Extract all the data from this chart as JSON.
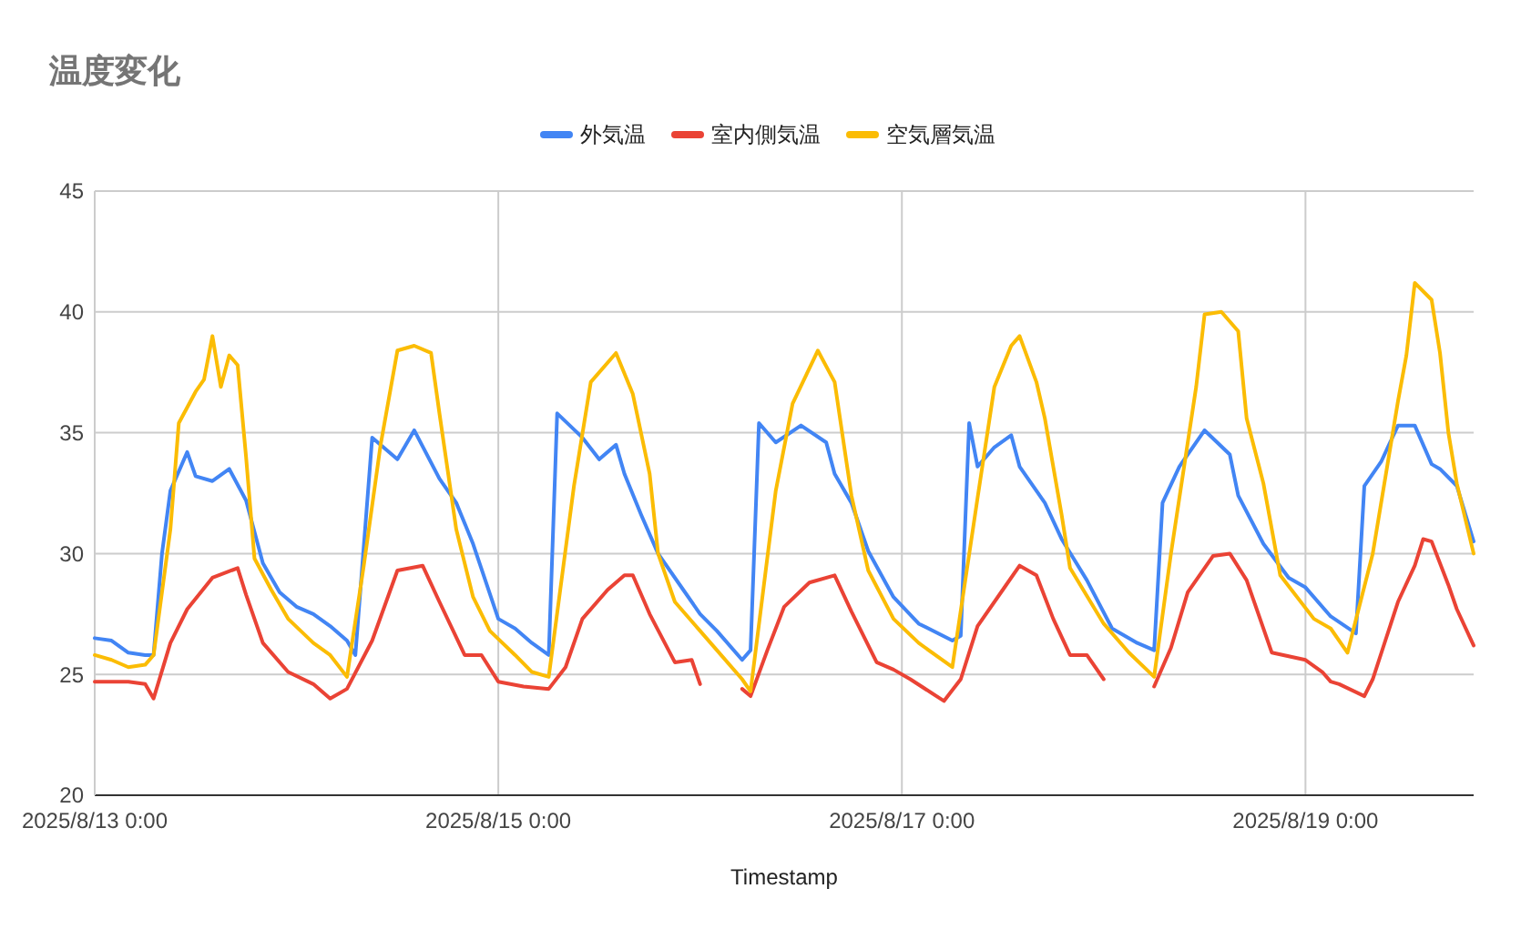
{
  "chart_data": {
    "type": "line",
    "title": "温度変化",
    "xlabel": "Timestamp",
    "legend": "top",
    "grid": true,
    "line_style": "solid",
    "marker": "none",
    "xlim": [
      "2025-08-13T00:00",
      "2025-08-19T20:00"
    ],
    "xticks": [
      {
        "value": "2025-08-13T00:00",
        "label": "2025/8/13 0:00"
      },
      {
        "value": "2025-08-15T00:00",
        "label": "2025/8/15 0:00"
      },
      {
        "value": "2025-08-17T00:00",
        "label": "2025/8/17 0:00"
      },
      {
        "value": "2025-08-19T00:00",
        "label": "2025/8/19 0:00"
      }
    ],
    "ylim": [
      20,
      45
    ],
    "yticks": [
      20,
      25,
      30,
      35,
      40,
      45
    ],
    "series": [
      {
        "name": "外気温",
        "color": "#4285f4",
        "x": [
          "2025-08-13T00:00",
          "2025-08-13T02:00",
          "2025-08-13T04:00",
          "2025-08-13T06:00",
          "2025-08-13T07:00",
          "2025-08-13T08:00",
          "2025-08-13T09:00",
          "2025-08-13T11:00",
          "2025-08-13T12:00",
          "2025-08-13T14:00",
          "2025-08-13T16:00",
          "2025-08-13T18:00",
          "2025-08-13T20:00",
          "2025-08-13T22:00",
          "2025-08-14T00:00",
          "2025-08-14T02:00",
          "2025-08-14T04:00",
          "2025-08-14T06:00",
          "2025-08-14T07:00",
          "2025-08-14T09:00",
          "2025-08-14T12:00",
          "2025-08-14T14:00",
          "2025-08-14T17:00",
          "2025-08-14T19:00",
          "2025-08-14T21:00",
          "2025-08-15T00:00",
          "2025-08-15T02:00",
          "2025-08-15T04:00",
          "2025-08-15T06:00",
          "2025-08-15T07:00",
          "2025-08-15T10:00",
          "2025-08-15T12:00",
          "2025-08-15T14:00",
          "2025-08-15T15:00",
          "2025-08-15T17:00",
          "2025-08-15T19:00",
          "2025-08-15T22:00",
          "2025-08-16T00:00",
          "2025-08-16T02:00",
          "2025-08-16T05:00",
          "2025-08-16T06:00",
          "2025-08-16T07:00",
          "2025-08-16T09:00",
          "2025-08-16T12:00",
          "2025-08-16T15:00",
          "2025-08-16T16:00",
          "2025-08-16T18:00",
          "2025-08-16T20:00",
          "2025-08-16T23:00",
          "2025-08-17T02:00",
          "2025-08-17T06:00",
          "2025-08-17T07:00",
          "2025-08-17T08:00",
          "2025-08-17T09:00",
          "2025-08-17T11:00",
          "2025-08-17T13:00",
          "2025-08-17T14:00",
          "2025-08-17T17:00",
          "2025-08-17T19:00",
          "2025-08-17T22:00",
          "2025-08-18T01:00",
          "2025-08-18T04:00",
          "2025-08-18T06:00",
          "2025-08-18T07:00",
          "2025-08-18T09:00",
          "2025-08-18T12:00",
          "2025-08-18T15:00",
          "2025-08-18T16:00",
          "2025-08-18T19:00",
          "2025-08-18T22:00",
          "2025-08-19T00:00",
          "2025-08-19T03:00",
          "2025-08-19T06:00",
          "2025-08-19T07:00",
          "2025-08-19T09:00",
          "2025-08-19T11:00",
          "2025-08-19T13:00",
          "2025-08-19T15:00",
          "2025-08-19T16:00",
          "2025-08-19T18:00",
          "2025-08-19T20:00"
        ],
        "values": [
          26.5,
          26.4,
          25.9,
          25.8,
          25.8,
          30.0,
          32.6,
          34.2,
          33.2,
          33.0,
          33.5,
          32.2,
          29.6,
          28.4,
          27.8,
          27.5,
          27.0,
          26.4,
          25.8,
          34.8,
          33.9,
          35.1,
          33.1,
          32.1,
          30.4,
          27.3,
          26.9,
          26.3,
          25.8,
          35.8,
          34.8,
          33.9,
          34.5,
          33.3,
          31.6,
          30.0,
          28.5,
          27.5,
          26.8,
          25.6,
          26.0,
          35.4,
          34.6,
          35.3,
          34.6,
          33.3,
          32.1,
          30.1,
          28.2,
          27.1,
          26.4,
          26.6,
          35.4,
          33.6,
          34.4,
          34.9,
          33.6,
          32.1,
          30.6,
          28.9,
          26.9,
          26.3,
          26.0,
          32.1,
          33.6,
          35.1,
          34.1,
          32.4,
          30.4,
          29.0,
          28.6,
          27.4,
          26.7,
          32.8,
          33.8,
          35.3,
          35.3,
          33.7,
          33.5,
          32.8,
          30.5
        ]
      },
      {
        "name": "室内側気温",
        "color": "#ea4335",
        "x": [
          "2025-08-13T00:00",
          "2025-08-13T02:00",
          "2025-08-13T04:00",
          "2025-08-13T06:00",
          "2025-08-13T07:00",
          "2025-08-13T09:00",
          "2025-08-13T11:00",
          "2025-08-13T14:00",
          "2025-08-13T17:00",
          "2025-08-13T18:00",
          "2025-08-13T20:00",
          "2025-08-13T23:00",
          "2025-08-14T02:00",
          "2025-08-14T04:00",
          "2025-08-14T06:00",
          "2025-08-14T09:00",
          "2025-08-14T12:00",
          "2025-08-14T15:00",
          "2025-08-14T17:00",
          "2025-08-14T20:00",
          "2025-08-14T22:00",
          "2025-08-15T00:00",
          "2025-08-15T03:00",
          "2025-08-15T06:00",
          "2025-08-15T08:00",
          "2025-08-15T10:00",
          "2025-08-15T13:00",
          "2025-08-15T15:00",
          "2025-08-15T16:00",
          "2025-08-15T18:00",
          "2025-08-15T21:00",
          "2025-08-15T23:00",
          "2025-08-16T00:00",
          "2025-08-16T01:00",
          "2025-08-16T05:00",
          "2025-08-16T06:00",
          "2025-08-16T08:00",
          "2025-08-16T10:00",
          "2025-08-16T13:00",
          "2025-08-16T16:00",
          "2025-08-16T18:00",
          "2025-08-16T21:00",
          "2025-08-16T23:00",
          "2025-08-17T01:00",
          "2025-08-17T05:00",
          "2025-08-17T07:00",
          "2025-08-17T09:00",
          "2025-08-17T12:00",
          "2025-08-17T14:00",
          "2025-08-17T16:00",
          "2025-08-17T18:00",
          "2025-08-17T20:00",
          "2025-08-17T22:00",
          "2025-08-18T00:00",
          "2025-08-18T01:00",
          "2025-08-18T06:00",
          "2025-08-18T08:00",
          "2025-08-18T10:00",
          "2025-08-18T13:00",
          "2025-08-18T15:00",
          "2025-08-18T17:00",
          "2025-08-18T20:00",
          "2025-08-19T00:00",
          "2025-08-19T02:00",
          "2025-08-19T03:00",
          "2025-08-19T04:00",
          "2025-08-19T07:00",
          "2025-08-19T08:00",
          "2025-08-19T11:00",
          "2025-08-19T13:00",
          "2025-08-19T14:00",
          "2025-08-19T15:00",
          "2025-08-19T17:00",
          "2025-08-19T18:00",
          "2025-08-19T20:00"
        ],
        "values": [
          24.7,
          24.7,
          24.7,
          24.6,
          24.0,
          26.3,
          27.7,
          29.0,
          29.4,
          28.3,
          26.3,
          25.1,
          24.6,
          24.0,
          24.4,
          26.4,
          29.3,
          29.5,
          28.0,
          25.8,
          25.8,
          24.7,
          24.5,
          24.4,
          25.3,
          27.3,
          28.5,
          29.1,
          29.1,
          27.5,
          25.5,
          25.6,
          24.6,
          null,
          24.4,
          24.1,
          26.0,
          27.8,
          28.8,
          29.1,
          27.6,
          25.5,
          25.2,
          24.8,
          23.9,
          24.8,
          27.0,
          28.5,
          29.5,
          29.1,
          27.3,
          25.8,
          25.8,
          24.8,
          null,
          24.5,
          26.1,
          28.4,
          29.9,
          30.0,
          28.9,
          25.9,
          25.6,
          25.1,
          24.7,
          24.6,
          24.1,
          24.8,
          28.0,
          29.5,
          30.6,
          30.5,
          28.7,
          27.7,
          26.2
        ]
      },
      {
        "name": "空気層気温",
        "color": "#fbbc04",
        "x": [
          "2025-08-13T00:00",
          "2025-08-13T02:00",
          "2025-08-13T04:00",
          "2025-08-13T06:00",
          "2025-08-13T07:00",
          "2025-08-13T09:00",
          "2025-08-13T10:00",
          "2025-08-13T12:00",
          "2025-08-13T13:00",
          "2025-08-13T14:00",
          "2025-08-13T15:00",
          "2025-08-13T16:00",
          "2025-08-13T17:00",
          "2025-08-13T18:00",
          "2025-08-13T19:00",
          "2025-08-13T21:00",
          "2025-08-13T23:00",
          "2025-08-14T02:00",
          "2025-08-14T04:00",
          "2025-08-14T06:00",
          "2025-08-14T08:00",
          "2025-08-14T10:00",
          "2025-08-14T12:00",
          "2025-08-14T14:00",
          "2025-08-14T16:00",
          "2025-08-14T17:00",
          "2025-08-14T19:00",
          "2025-08-14T21:00",
          "2025-08-14T23:00",
          "2025-08-15T02:00",
          "2025-08-15T04:00",
          "2025-08-15T06:00",
          "2025-08-15T09:00",
          "2025-08-15T11:00",
          "2025-08-15T14:00",
          "2025-08-15T16:00",
          "2025-08-15T18:00",
          "2025-08-15T19:00",
          "2025-08-15T21:00",
          "2025-08-16T00:00",
          "2025-08-16T02:00",
          "2025-08-16T05:00",
          "2025-08-16T06:00",
          "2025-08-16T09:00",
          "2025-08-16T11:00",
          "2025-08-16T14:00",
          "2025-08-16T16:00",
          "2025-08-16T18:00",
          "2025-08-16T20:00",
          "2025-08-16T23:00",
          "2025-08-17T02:00",
          "2025-08-17T06:00",
          "2025-08-17T09:00",
          "2025-08-17T11:00",
          "2025-08-17T13:00",
          "2025-08-17T14:00",
          "2025-08-17T16:00",
          "2025-08-17T17:00",
          "2025-08-17T19:00",
          "2025-08-17T20:00",
          "2025-08-18T00:00",
          "2025-08-18T03:00",
          "2025-08-18T06:00",
          "2025-08-18T08:00",
          "2025-08-18T11:00",
          "2025-08-18T12:00",
          "2025-08-18T14:00",
          "2025-08-18T16:00",
          "2025-08-18T17:00",
          "2025-08-18T19:00",
          "2025-08-18T21:00",
          "2025-08-19T01:00",
          "2025-08-19T03:00",
          "2025-08-19T05:00",
          "2025-08-19T08:00",
          "2025-08-19T11:00",
          "2025-08-19T12:00",
          "2025-08-19T13:00",
          "2025-08-19T15:00",
          "2025-08-19T16:00",
          "2025-08-19T17:00",
          "2025-08-19T18:00",
          "2025-08-19T20:00"
        ],
        "values": [
          25.8,
          25.6,
          25.3,
          25.4,
          25.8,
          31.0,
          35.4,
          36.7,
          37.2,
          39.0,
          36.9,
          38.2,
          37.8,
          34.0,
          29.8,
          28.5,
          27.3,
          26.3,
          25.8,
          24.9,
          29.5,
          34.5,
          38.4,
          38.6,
          38.3,
          35.8,
          31.0,
          28.2,
          26.8,
          25.8,
          25.1,
          24.9,
          32.8,
          37.1,
          38.3,
          36.6,
          33.3,
          30.0,
          28.0,
          26.8,
          26.0,
          24.8,
          24.3,
          32.6,
          36.2,
          38.4,
          37.1,
          32.4,
          29.3,
          27.3,
          26.3,
          25.3,
          32.3,
          36.9,
          38.6,
          39.0,
          37.1,
          35.6,
          31.6,
          29.4,
          27.1,
          25.9,
          24.9,
          30.0,
          36.9,
          39.9,
          40.0,
          39.2,
          35.6,
          32.9,
          29.1,
          27.3,
          26.9,
          25.9,
          30.0,
          36.3,
          38.2,
          41.2,
          40.5,
          38.3,
          35.0,
          32.9,
          30.0
        ]
      }
    ]
  }
}
